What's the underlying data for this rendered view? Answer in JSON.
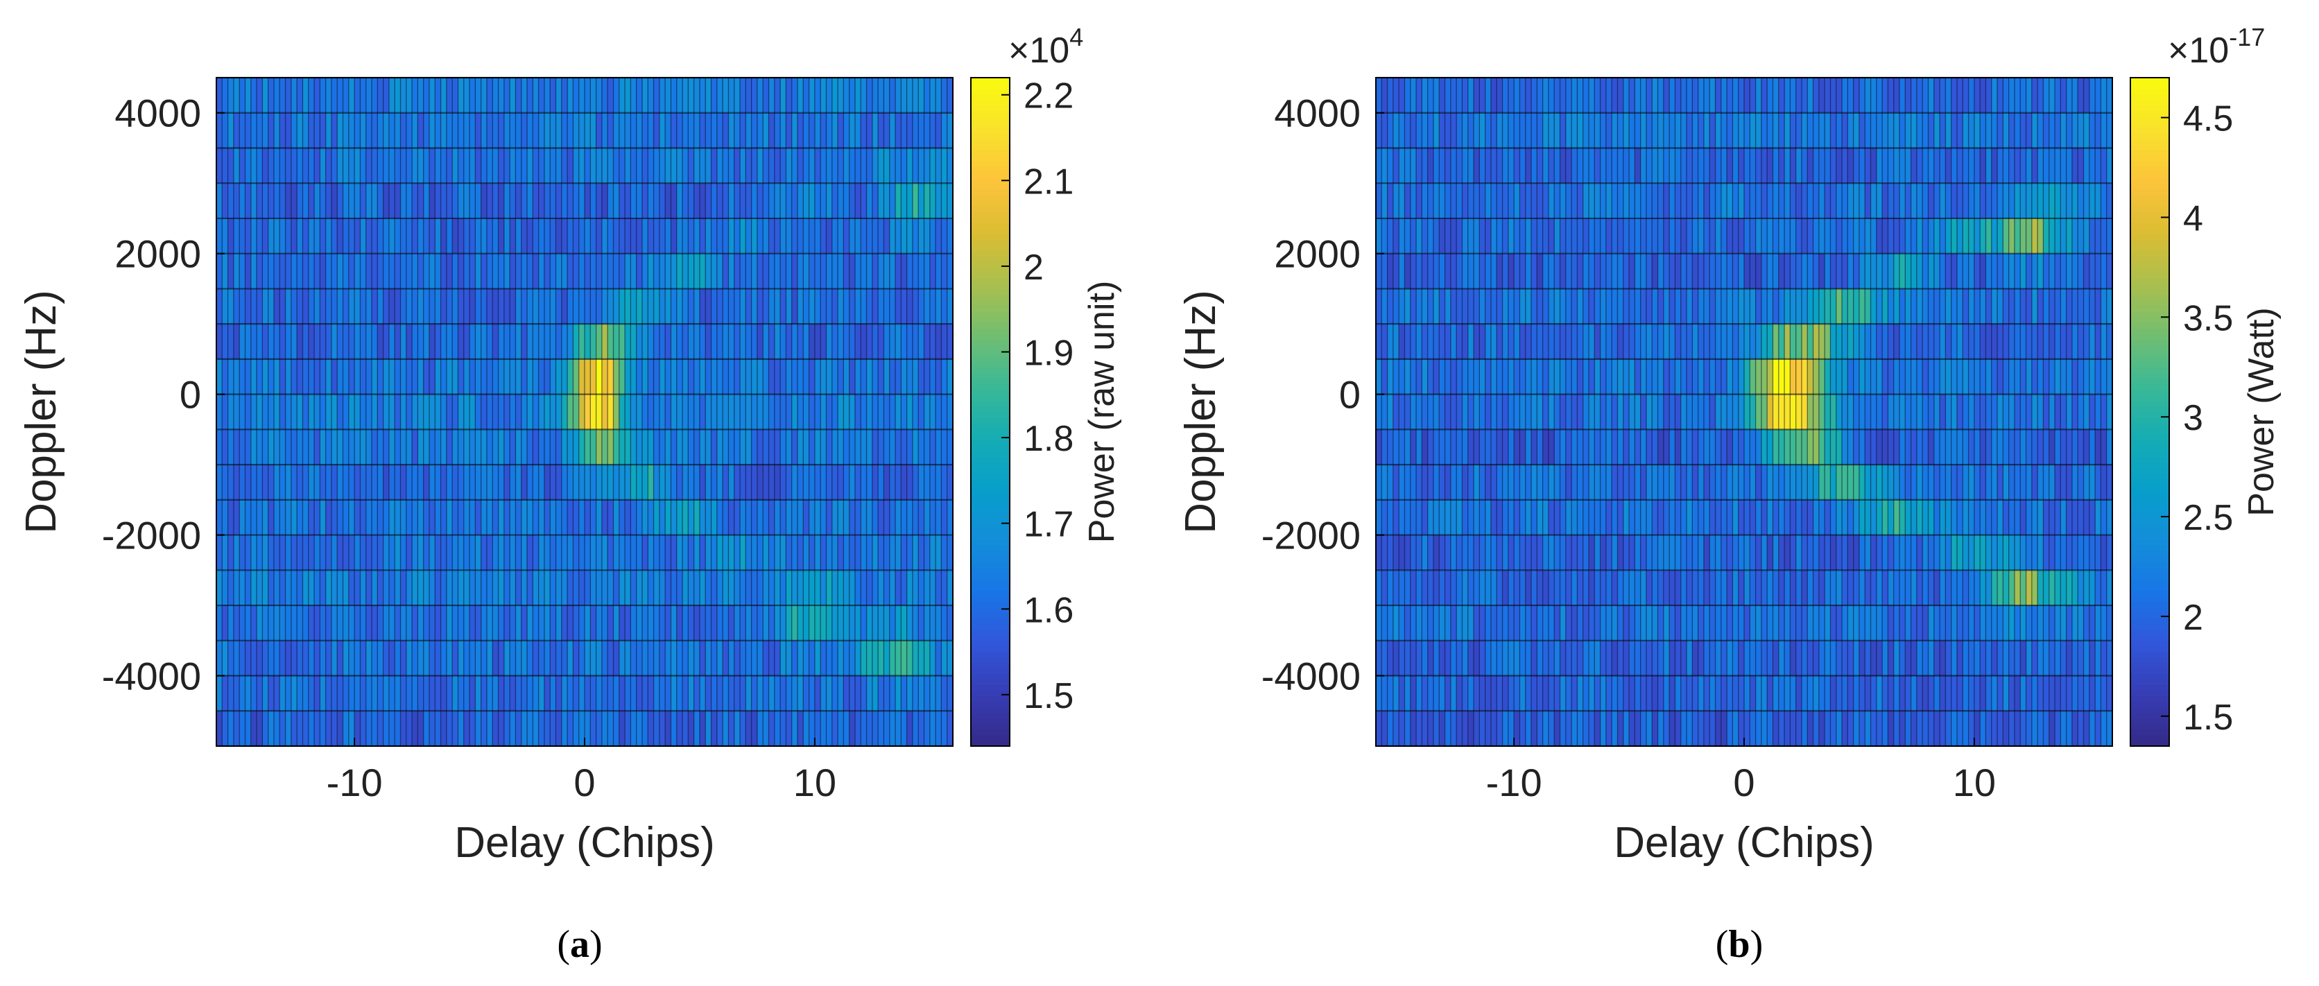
{
  "chart_data": [
    {
      "type": "heatmap",
      "panel_label": "a",
      "xlabel": "Delay (Chips)",
      "ylabel": "Doppler (Hz)",
      "xlim": [
        -16,
        16
      ],
      "ylim": [
        -5000,
        4500
      ],
      "xticks": [
        -10,
        0,
        10
      ],
      "yticks": [
        4000,
        2000,
        0,
        -2000,
        -4000
      ],
      "xtick_labels": [
        "-10",
        "0",
        "10"
      ],
      "ytick_labels": [
        "4000",
        "2000",
        "0",
        "-2000",
        "-4000"
      ],
      "colorbar_label": "Power (raw unit)",
      "colorbar_exponent": "×10",
      "colorbar_exponent_power": "4",
      "clim": [
        1.44,
        2.22
      ],
      "colorbar_ticks": [
        1.5,
        1.6,
        1.7,
        1.8,
        1.9,
        2.0,
        2.1,
        2.2
      ],
      "colorbar_tick_labels": [
        "1.5",
        "1.6",
        "1.7",
        "1.8",
        "1.9",
        "2",
        "2.1",
        "2.2"
      ],
      "doppler_bin_hz": 500,
      "delay_bin_chips": 0.25,
      "background_level": 1.62,
      "noise_amplitude": 0.07,
      "peak_delay": 0.5,
      "peak_value": 2.18,
      "arc_width_chips": 0.9,
      "arc_curvature": 1.25,
      "arc_decay": 0.16,
      "arc_level": 0.42,
      "secondary_spots": [
        {
          "delay": 13.5,
          "doppler": -3750,
          "value": 1.88
        },
        {
          "delay": 14.5,
          "doppler": 2750,
          "value": 1.86
        },
        {
          "delay": 10,
          "doppler": -3250,
          "value": 1.84
        }
      ]
    },
    {
      "type": "heatmap",
      "panel_label": "b",
      "xlabel": "Delay (Chips)",
      "ylabel": "Doppler (Hz)",
      "xlim": [
        -16,
        16
      ],
      "ylim": [
        -5000,
        4500
      ],
      "xticks": [
        -10,
        0,
        10
      ],
      "yticks": [
        4000,
        2000,
        0,
        -2000,
        -4000
      ],
      "xtick_labels": [
        "-10",
        "0",
        "10"
      ],
      "ytick_labels": [
        "4000",
        "2000",
        "0",
        "-2000",
        "-4000"
      ],
      "colorbar_label": "Power (Watt)",
      "colorbar_exponent": "×10",
      "colorbar_exponent_power": "-17",
      "clim": [
        1.35,
        4.7
      ],
      "colorbar_ticks": [
        1.5,
        2.0,
        2.5,
        3.0,
        3.5,
        4.0,
        4.5
      ],
      "colorbar_tick_labels": [
        "1.5",
        "2",
        "2.5",
        "3",
        "3.5",
        "4",
        "4.5"
      ],
      "doppler_bin_hz": 500,
      "delay_bin_chips": 0.25,
      "background_level": 2.05,
      "noise_amplitude": 0.3,
      "peak_delay": 2.0,
      "peak_value": 4.55,
      "arc_width_chips": 1.2,
      "arc_curvature": 1.55,
      "arc_decay": 0.1,
      "arc_level": 0.5,
      "secondary_spots": [
        {
          "delay": 12.5,
          "doppler": 2250,
          "value": 3.6
        },
        {
          "delay": 12.0,
          "doppler": -2750,
          "value": 3.5
        }
      ]
    }
  ]
}
